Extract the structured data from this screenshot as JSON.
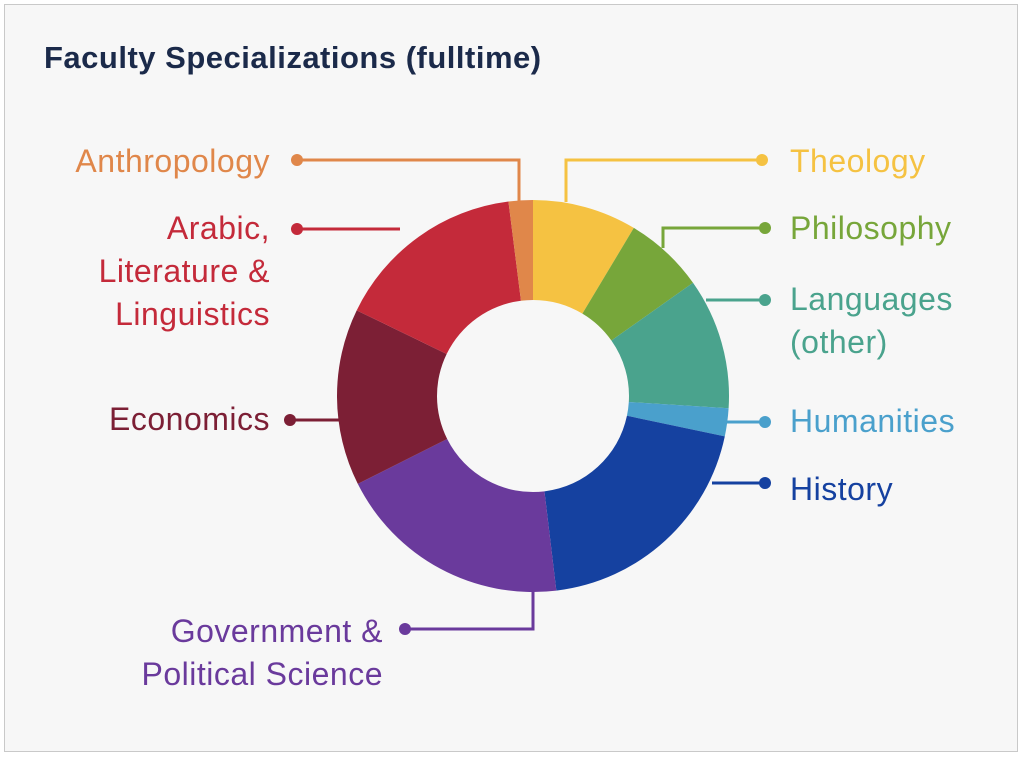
{
  "chart_data": {
    "type": "donut",
    "title": "Faculty Specializations (fulltime)",
    "categories": [
      "Theology",
      "Philosophy",
      "Languages\n(other)",
      "Humanities",
      "History",
      "Government &\nPolitical Science",
      "Economics",
      "Arabic,\nLiterature &\nLinguistics",
      "Anthropology"
    ],
    "values": [
      8.6,
      6.6,
      10.8,
      2.3,
      19.8,
      19.5,
      14.6,
      15.8,
      2.0
    ],
    "colors": [
      "#f5c242",
      "#77a63a",
      "#4aa38d",
      "#4aa0cc",
      "#1541a0",
      "#6a3a9c",
      "#7c1f35",
      "#c42a3a",
      "#e0874a"
    ]
  }
}
